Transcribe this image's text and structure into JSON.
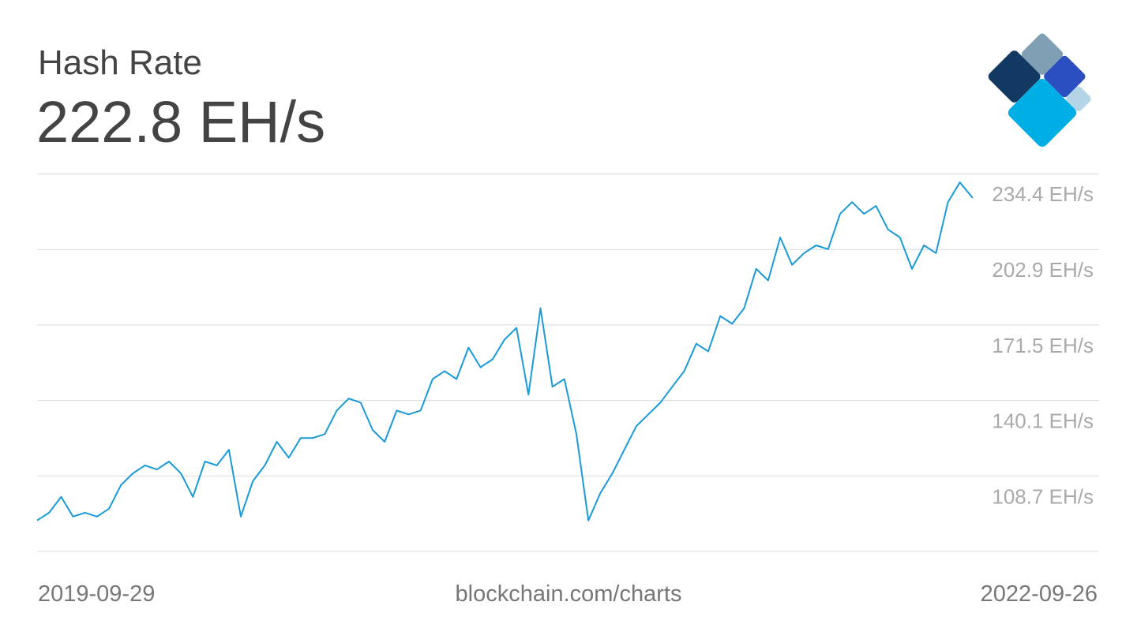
{
  "chart_data": {
    "type": "line",
    "title": "Hash Rate",
    "current_value": "222.8 EH/s",
    "source": "blockchain.com/charts",
    "color": "#1a9ad6",
    "xlim": [
      "2019-09-29",
      "2022-09-26"
    ],
    "ylim": [
      77.3,
      234.4
    ],
    "yticks": [
      {
        "value": 234.4,
        "label": "234.4 EH/s"
      },
      {
        "value": 202.9,
        "label": "202.9 EH/s"
      },
      {
        "value": 171.5,
        "label": "171.5 EH/s"
      },
      {
        "value": 140.1,
        "label": "140.1 EH/s"
      },
      {
        "value": 108.7,
        "label": "108.7 EH/s"
      }
    ],
    "grid": true,
    "x": [
      "2019-09-29",
      "2019-10-13",
      "2019-10-27",
      "2019-11-10",
      "2019-11-24",
      "2019-12-08",
      "2019-12-22",
      "2020-01-05",
      "2020-01-19",
      "2020-02-02",
      "2020-02-16",
      "2020-03-01",
      "2020-03-15",
      "2020-03-29",
      "2020-04-12",
      "2020-04-26",
      "2020-05-10",
      "2020-05-24",
      "2020-06-07",
      "2020-06-21",
      "2020-07-05",
      "2020-07-19",
      "2020-08-02",
      "2020-08-16",
      "2020-08-30",
      "2020-09-13",
      "2020-09-27",
      "2020-10-11",
      "2020-10-25",
      "2020-11-08",
      "2020-11-22",
      "2020-12-06",
      "2020-12-20",
      "2021-01-03",
      "2021-01-17",
      "2021-01-31",
      "2021-02-14",
      "2021-02-28",
      "2021-03-14",
      "2021-03-28",
      "2021-04-11",
      "2021-04-25",
      "2021-05-09",
      "2021-05-23",
      "2021-06-06",
      "2021-06-20",
      "2021-07-04",
      "2021-07-18",
      "2021-08-01",
      "2021-08-15",
      "2021-08-29",
      "2021-09-12",
      "2021-09-26",
      "2021-10-10",
      "2021-10-24",
      "2021-11-07",
      "2021-11-21",
      "2021-12-05",
      "2021-12-19",
      "2022-01-02",
      "2022-01-16",
      "2022-01-30",
      "2022-02-13",
      "2022-02-27",
      "2022-03-13",
      "2022-03-27",
      "2022-04-10",
      "2022-04-24",
      "2022-05-08",
      "2022-05-22",
      "2022-06-05",
      "2022-06-19",
      "2022-07-03",
      "2022-07-17",
      "2022-07-31",
      "2022-08-14",
      "2022-08-28",
      "2022-09-11",
      "2022-09-26"
    ],
    "values": [
      90.2,
      93.4,
      100.0,
      91.8,
      93.4,
      91.8,
      95.1,
      104.9,
      109.8,
      113.1,
      111.4,
      114.7,
      109.8,
      100.0,
      114.7,
      113.1,
      119.6,
      91.8,
      106.5,
      113.1,
      122.9,
      116.3,
      124.5,
      124.5,
      126.1,
      135.9,
      140.9,
      139.2,
      127.8,
      122.9,
      135.9,
      134.3,
      135.9,
      149.0,
      152.3,
      149.0,
      162.1,
      153.9,
      157.2,
      165.4,
      170.3,
      142.5,
      178.5,
      145.8,
      149.0,
      126.1,
      90.2,
      101.6,
      109.8,
      119.6,
      129.4,
      134.3,
      139.2,
      145.8,
      152.3,
      163.7,
      160.5,
      175.2,
      172.0,
      178.5,
      194.8,
      190.0,
      207.9,
      196.5,
      201.4,
      204.6,
      203.0,
      217.7,
      222.6,
      217.7,
      221.0,
      211.2,
      207.9,
      194.8,
      204.6,
      201.4,
      222.6,
      230.8,
      224.3
    ]
  }
}
